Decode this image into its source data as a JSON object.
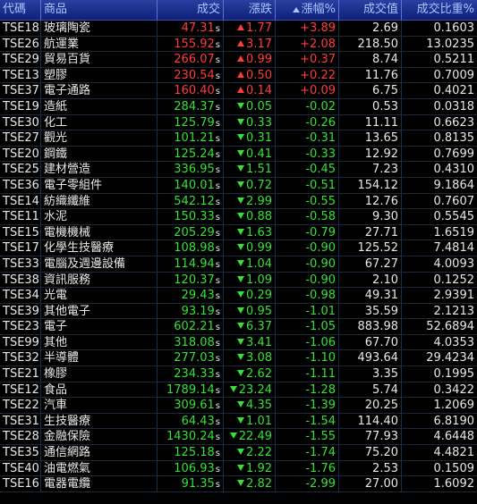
{
  "headers": {
    "code": "代碼",
    "name": "商品",
    "price": "成交",
    "change": "漲跌",
    "pct": "漲幅%",
    "value": "成交值",
    "ratio": "成交比重%"
  },
  "colors": {
    "up": "#ff3b3b",
    "down": "#35e035",
    "header_bg": "#1a2f8f",
    "text": "#e8e8e8"
  },
  "rows": [
    {
      "code": "TSE18",
      "name": "玻璃陶瓷",
      "price": "47.31",
      "flag": "s",
      "dir": "up",
      "change": "1.77",
      "pct": "+3.89",
      "value": "2.69",
      "ratio": "0.1603"
    },
    {
      "code": "TSE26",
      "name": "航運業",
      "price": "155.92",
      "flag": "s",
      "dir": "up",
      "change": "3.17",
      "pct": "+2.08",
      "value": "218.50",
      "ratio": "13.0235"
    },
    {
      "code": "TSE29",
      "name": "貿易百貨",
      "price": "266.07",
      "flag": "s",
      "dir": "up",
      "change": "0.99",
      "pct": "+0.37",
      "value": "8.74",
      "ratio": "0.5211"
    },
    {
      "code": "TSE13",
      "name": "塑膠",
      "price": "230.54",
      "flag": "s",
      "dir": "up",
      "change": "0.50",
      "pct": "+0.22",
      "value": "11.76",
      "ratio": "0.7009"
    },
    {
      "code": "TSE37",
      "name": "電子通路",
      "price": "160.40",
      "flag": "s",
      "dir": "up",
      "change": "0.14",
      "pct": "+0.09",
      "value": "6.75",
      "ratio": "0.4021"
    },
    {
      "code": "TSE19",
      "name": "造紙",
      "price": "284.37",
      "flag": "s",
      "dir": "down",
      "change": "0.05",
      "pct": "-0.02",
      "value": "0.53",
      "ratio": "0.0318"
    },
    {
      "code": "TSE30",
      "name": "化工",
      "price": "125.79",
      "flag": "s",
      "dir": "down",
      "change": "0.33",
      "pct": "-0.26",
      "value": "11.11",
      "ratio": "0.6623"
    },
    {
      "code": "TSE27",
      "name": "觀光",
      "price": "101.21",
      "flag": "s",
      "dir": "down",
      "change": "0.31",
      "pct": "-0.31",
      "value": "13.65",
      "ratio": "0.8135"
    },
    {
      "code": "TSE20",
      "name": "鋼鐵",
      "price": "125.24",
      "flag": "s",
      "dir": "down",
      "change": "0.41",
      "pct": "-0.33",
      "value": "12.92",
      "ratio": "0.7699"
    },
    {
      "code": "TSE25",
      "name": "建材營造",
      "price": "336.95",
      "flag": "s",
      "dir": "down",
      "change": "1.51",
      "pct": "-0.45",
      "value": "7.23",
      "ratio": "0.4310"
    },
    {
      "code": "TSE36",
      "name": "電子零組件",
      "price": "140.01",
      "flag": "s",
      "dir": "down",
      "change": "0.72",
      "pct": "-0.51",
      "value": "154.12",
      "ratio": "9.1864"
    },
    {
      "code": "TSE14",
      "name": "紡織纖維",
      "price": "542.12",
      "flag": "s",
      "dir": "down",
      "change": "2.99",
      "pct": "-0.55",
      "value": "12.76",
      "ratio": "0.7607"
    },
    {
      "code": "TSE11",
      "name": "水泥",
      "price": "150.33",
      "flag": "s",
      "dir": "down",
      "change": "0.88",
      "pct": "-0.58",
      "value": "9.30",
      "ratio": "0.5545"
    },
    {
      "code": "TSE15",
      "name": "電機機械",
      "price": "205.29",
      "flag": "s",
      "dir": "down",
      "change": "1.63",
      "pct": "-0.79",
      "value": "27.71",
      "ratio": "1.6519"
    },
    {
      "code": "TSE17",
      "name": "化學生技醫療",
      "price": "108.98",
      "flag": "s",
      "dir": "down",
      "change": "0.99",
      "pct": "-0.90",
      "value": "125.52",
      "ratio": "7.4814"
    },
    {
      "code": "TSE33",
      "name": "電腦及週邊設備",
      "price": "114.94",
      "flag": "s",
      "dir": "down",
      "change": "1.04",
      "pct": "-0.90",
      "value": "67.27",
      "ratio": "4.0093"
    },
    {
      "code": "TSE38",
      "name": "資訊服務",
      "price": "120.37",
      "flag": "s",
      "dir": "down",
      "change": "1.09",
      "pct": "-0.90",
      "value": "2.10",
      "ratio": "0.1252"
    },
    {
      "code": "TSE34",
      "name": "光電",
      "price": "29.43",
      "flag": "s",
      "dir": "down",
      "change": "0.29",
      "pct": "-0.98",
      "value": "49.31",
      "ratio": "2.9391"
    },
    {
      "code": "TSE39",
      "name": "其他電子",
      "price": "93.19",
      "flag": "s",
      "dir": "down",
      "change": "0.95",
      "pct": "-1.01",
      "value": "35.59",
      "ratio": "2.1213"
    },
    {
      "code": "TSE23",
      "name": "電子",
      "price": "602.21",
      "flag": "s",
      "dir": "down",
      "change": "6.37",
      "pct": "-1.05",
      "value": "883.98",
      "ratio": "52.6894"
    },
    {
      "code": "TSE99",
      "name": "其他",
      "price": "318.08",
      "flag": "s",
      "dir": "down",
      "change": "3.41",
      "pct": "-1.06",
      "value": "67.70",
      "ratio": "4.0353"
    },
    {
      "code": "TSE32",
      "name": "半導體",
      "price": "277.03",
      "flag": "s",
      "dir": "down",
      "change": "3.08",
      "pct": "-1.10",
      "value": "493.64",
      "ratio": "29.4234"
    },
    {
      "code": "TSE21",
      "name": "橡膠",
      "price": "234.33",
      "flag": "s",
      "dir": "down",
      "change": "2.62",
      "pct": "-1.11",
      "value": "3.35",
      "ratio": "0.1995"
    },
    {
      "code": "TSE12",
      "name": "食品",
      "price": "1789.14",
      "flag": "s",
      "dir": "down",
      "change": "23.24",
      "pct": "-1.28",
      "value": "5.74",
      "ratio": "0.3422"
    },
    {
      "code": "TSE22",
      "name": "汽車",
      "price": "309.61",
      "flag": "s",
      "dir": "down",
      "change": "4.35",
      "pct": "-1.39",
      "value": "20.25",
      "ratio": "1.2069"
    },
    {
      "code": "TSE31",
      "name": "生技醫療",
      "price": "64.43",
      "flag": "s",
      "dir": "down",
      "change": "1.01",
      "pct": "-1.54",
      "value": "114.40",
      "ratio": "6.8190"
    },
    {
      "code": "TSE28",
      "name": "金融保險",
      "price": "1430.24",
      "flag": "s",
      "dir": "down",
      "change": "22.49",
      "pct": "-1.55",
      "value": "77.93",
      "ratio": "4.6448"
    },
    {
      "code": "TSE35",
      "name": "通信網路",
      "price": "125.18",
      "flag": "s",
      "dir": "down",
      "change": "2.22",
      "pct": "-1.74",
      "value": "75.20",
      "ratio": "4.4821"
    },
    {
      "code": "TSE40",
      "name": "油電燃氣",
      "price": "106.93",
      "flag": "s",
      "dir": "down",
      "change": "1.92",
      "pct": "-1.76",
      "value": "2.53",
      "ratio": "0.1509"
    },
    {
      "code": "TSE16",
      "name": "電器電纜",
      "price": "91.35",
      "flag": "s",
      "dir": "down",
      "change": "2.82",
      "pct": "-2.99",
      "value": "27.00",
      "ratio": "1.6092"
    }
  ]
}
